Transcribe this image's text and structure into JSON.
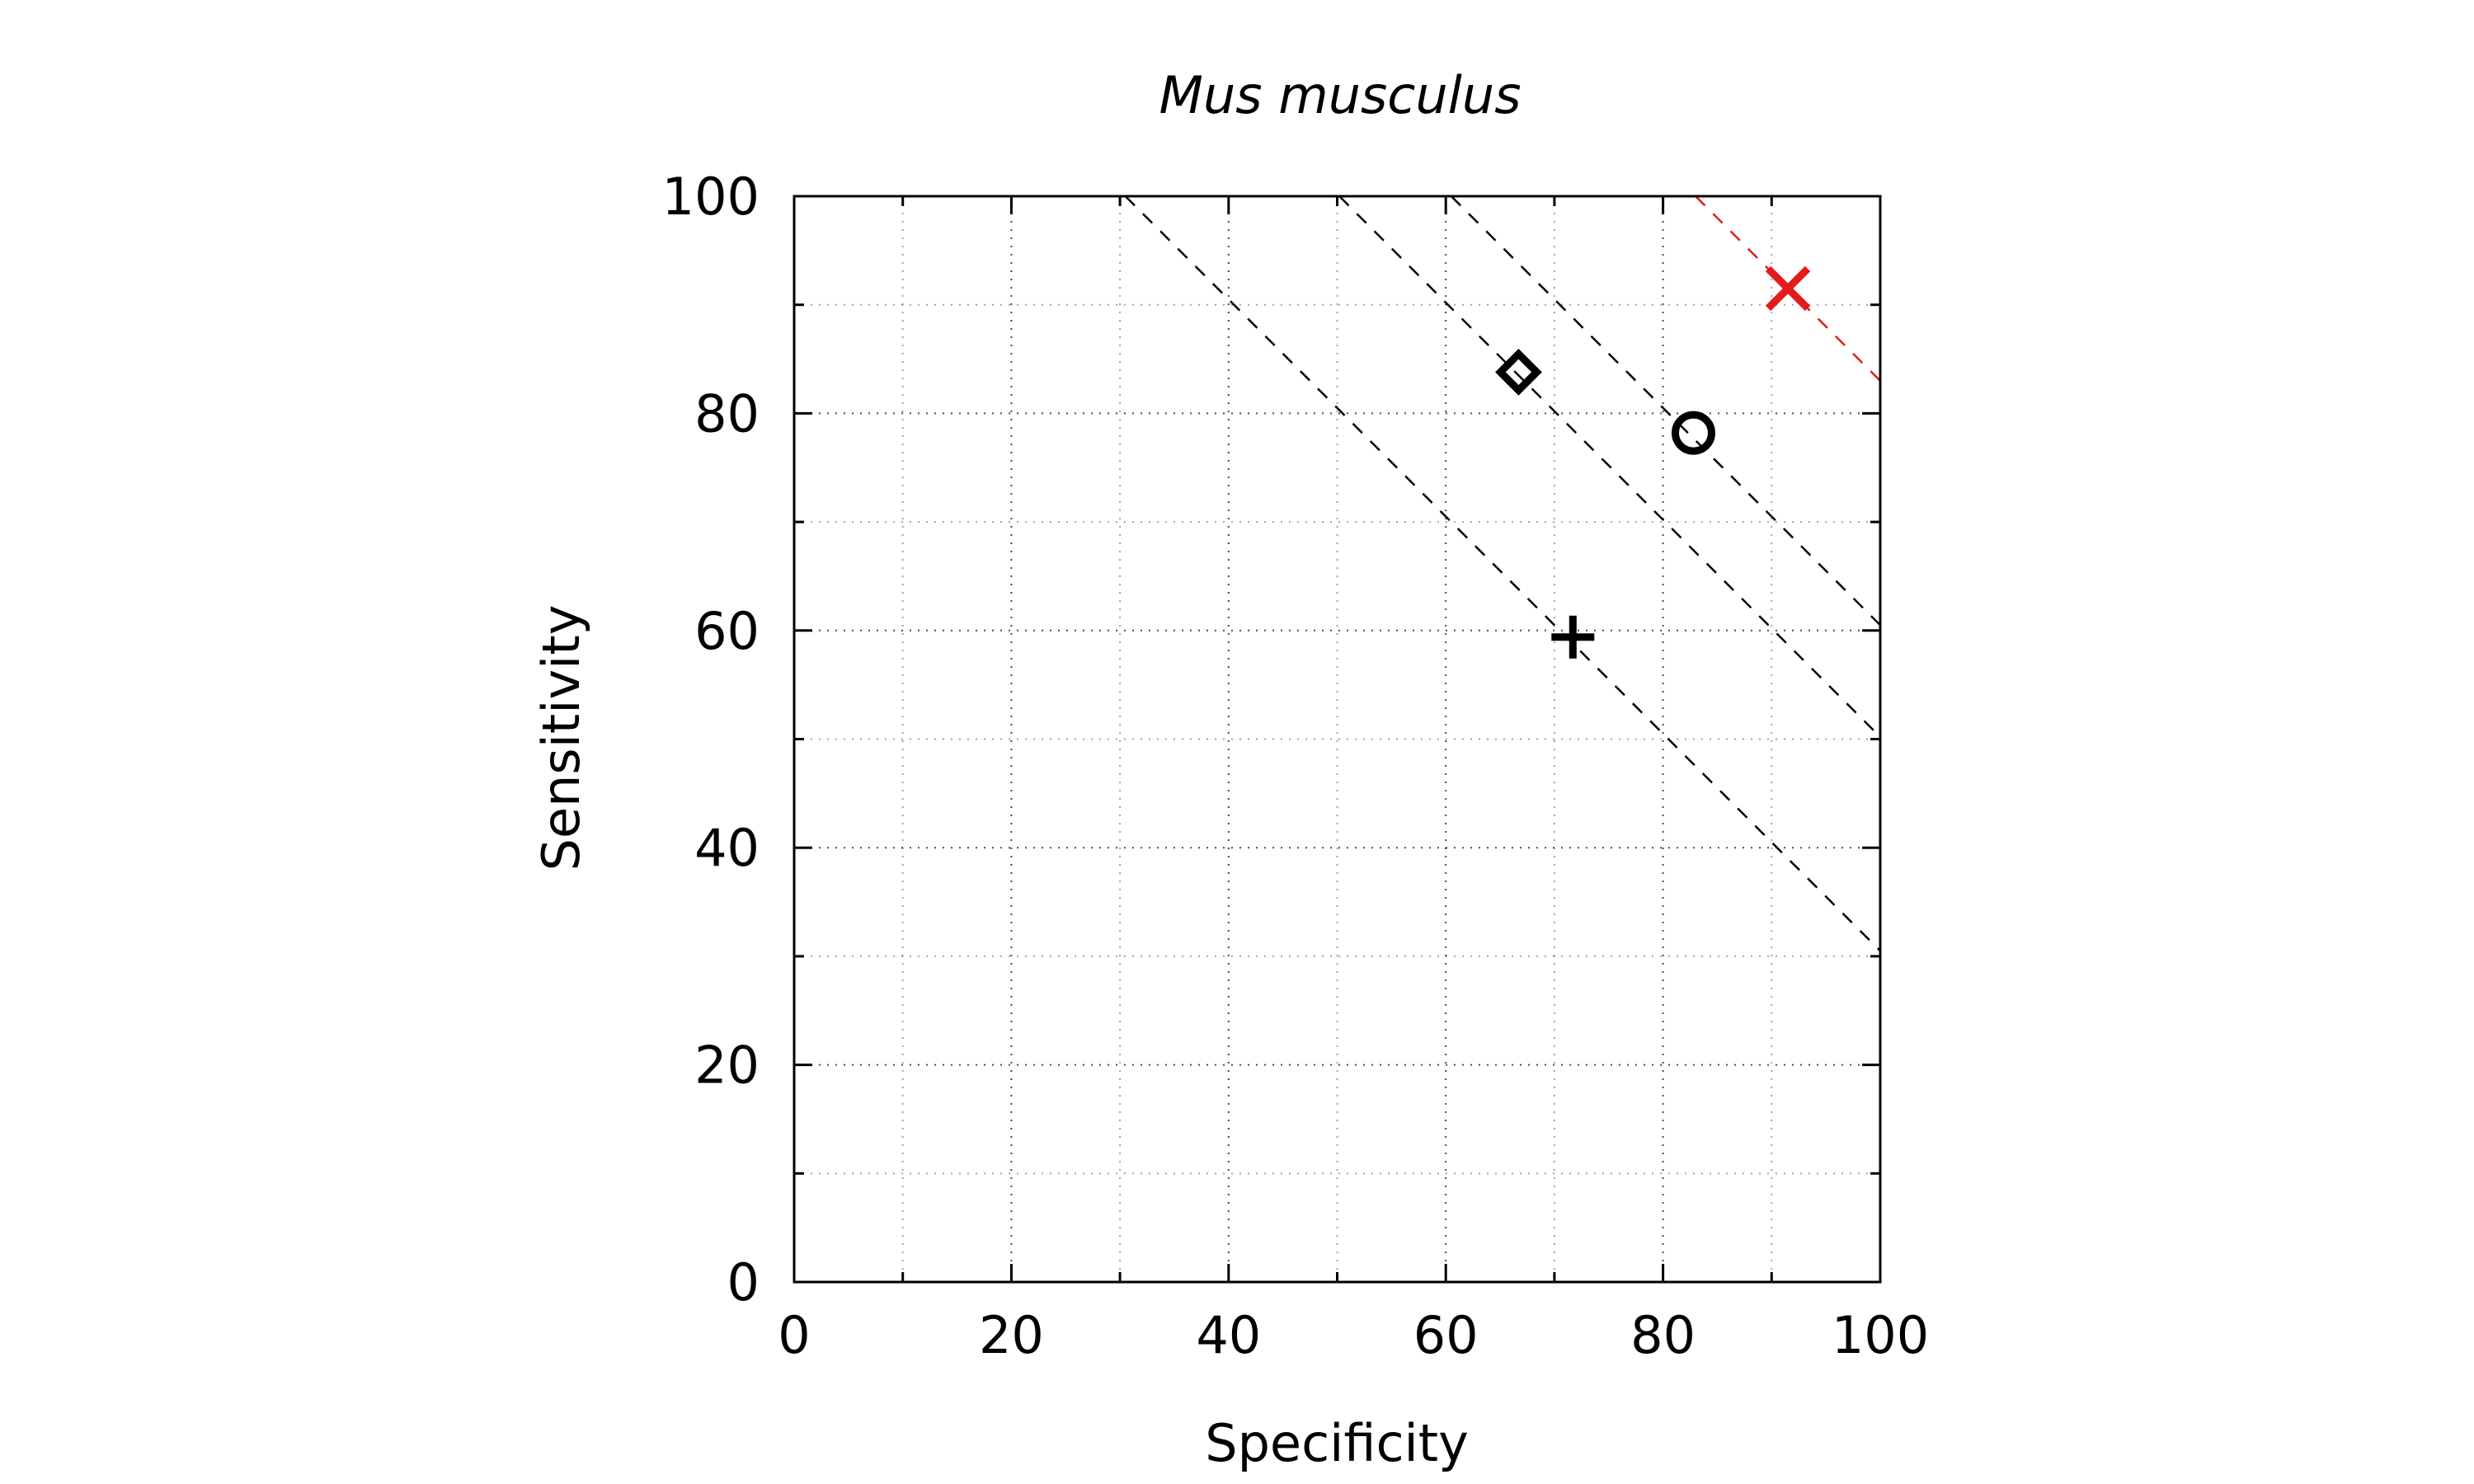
{
  "chart_data": {
    "type": "scatter",
    "title": "Mus musculus",
    "xlabel": "Specificity",
    "ylabel": "Sensitivity",
    "xlim": [
      0,
      100
    ],
    "ylim": [
      0,
      100
    ],
    "xticks": [
      "0",
      "20",
      "40",
      "60",
      "80",
      "100"
    ],
    "yticks": [
      "0",
      "20",
      "40",
      "60",
      "80",
      "100"
    ],
    "grid": true,
    "legend": "none",
    "points": [
      {
        "marker": "diamond",
        "x": 66.7,
        "y": 83.8,
        "color": "#000000"
      },
      {
        "marker": "circle",
        "x": 82.8,
        "y": 78.2,
        "color": "#000000"
      },
      {
        "marker": "plus",
        "x": 71.7,
        "y": 59.4,
        "color": "#000000"
      },
      {
        "marker": "cross",
        "x": 91.5,
        "y": 91.5,
        "color": "#e41a1c"
      }
    ],
    "reference_lines": [
      {
        "style": "dashed",
        "color": "#000000",
        "x": [
          30.5,
          100
        ],
        "y": [
          100,
          30.5
        ]
      },
      {
        "style": "dashed",
        "color": "#000000",
        "x": [
          50.2,
          100
        ],
        "y": [
          100,
          50.2
        ]
      },
      {
        "style": "dashed",
        "color": "#000000",
        "x": [
          60.5,
          100
        ],
        "y": [
          100,
          60.5
        ]
      },
      {
        "style": "dashed",
        "color": "#e41a1c",
        "x": [
          83,
          100
        ],
        "y": [
          100,
          83
        ]
      }
    ]
  }
}
